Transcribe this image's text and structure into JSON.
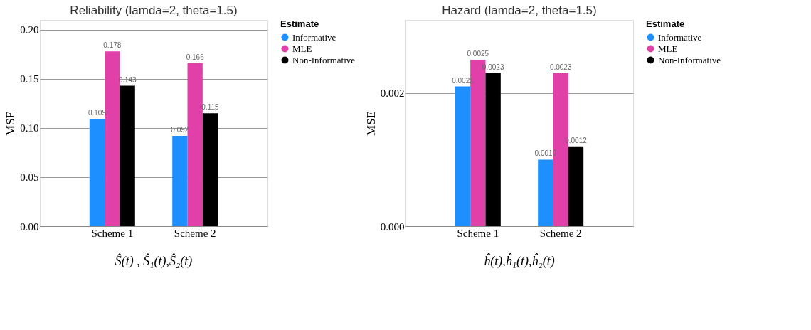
{
  "chart_data": [
    {
      "type": "bar",
      "title": "Reliability (lamda=2, theta=1.5)",
      "ylabel": "MSE",
      "legend_title": "Estimate",
      "legend": "top right",
      "grid": "y",
      "categories": [
        "Scheme 1",
        "Scheme 2"
      ],
      "ylim": [
        0,
        0.21
      ],
      "yticks": [
        "0.00",
        "0.05",
        "0.10",
        "0.15",
        "0.20"
      ],
      "series": [
        {
          "name": "Informative",
          "color": "#1e8fff",
          "values": [
            0.109,
            0.092
          ],
          "value_labels": [
            "0.109",
            "0.092"
          ]
        },
        {
          "name": "MLE",
          "color": "#e040a8",
          "values": [
            0.178,
            0.166
          ],
          "value_labels": [
            "0.178",
            "0.166"
          ]
        },
        {
          "name": "Non-Informative",
          "color": "#000000",
          "values": [
            0.143,
            0.115
          ],
          "value_labels": [
            "0.143",
            "0.115"
          ]
        }
      ],
      "annotations": [
        "Ŝ(t) , Ŝ₁(t),Ŝ₂(t)"
      ]
    },
    {
      "type": "bar",
      "title": "Hazard (lamda=2, theta=1.5)",
      "ylabel": "MSE",
      "legend_title": "Estimate",
      "legend": "top right",
      "grid": "y",
      "categories": [
        "Scheme 1",
        "Scheme 2"
      ],
      "ylim": [
        0,
        0.0031
      ],
      "yticks": [
        {
          "value": 0,
          "label": "0.000"
        },
        {
          "value": 0.002,
          "label": "0.002"
        }
      ],
      "series": [
        {
          "name": "Informative",
          "color": "#1e8fff",
          "values": [
            0.0021,
            0.001
          ],
          "value_labels": [
            "0.0021",
            "0.0010"
          ]
        },
        {
          "name": "MLE",
          "color": "#e040a8",
          "values": [
            0.0025,
            0.0023
          ],
          "value_labels": [
            "0.0025",
            "0.0023"
          ]
        },
        {
          "name": "Non-Informative",
          "color": "#000000",
          "values": [
            0.0023,
            0.0012
          ],
          "value_labels": [
            "0.0023",
            "0.0012"
          ]
        }
      ],
      "annotations": [
        "ĥ(t),ĥ₁(t),ĥ₂(t)"
      ]
    }
  ]
}
